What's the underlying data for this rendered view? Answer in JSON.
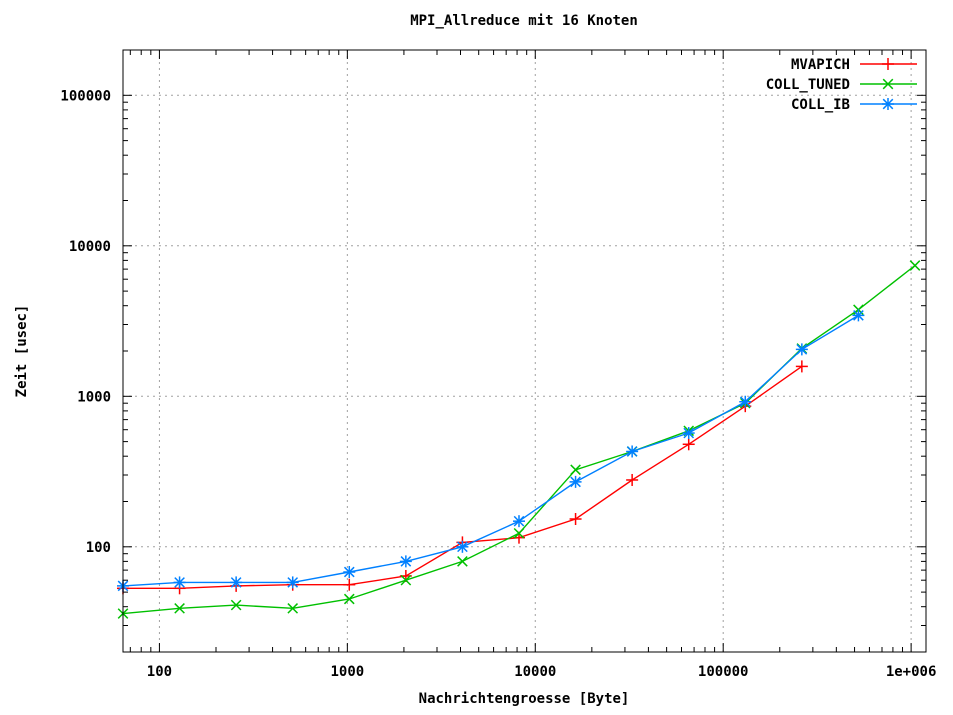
{
  "chart_data": {
    "type": "line",
    "title": "MPI_Allreduce mit 16 Knoten",
    "xlabel": "Nachrichtengroesse [Byte]",
    "ylabel": "Zeit [usec]",
    "xscale": "log",
    "yscale": "log",
    "xlim": [
      64,
      1200000
    ],
    "ylim": [
      20,
      200000
    ],
    "xticks": [
      {
        "value": 100,
        "label": "100"
      },
      {
        "value": 1000,
        "label": "1000"
      },
      {
        "value": 10000,
        "label": "10000"
      },
      {
        "value": 100000,
        "label": "100000"
      },
      {
        "value": 1000000,
        "label": "1e+006"
      }
    ],
    "yticks": [
      {
        "value": 100,
        "label": "100"
      },
      {
        "value": 1000,
        "label": "1000"
      },
      {
        "value": 10000,
        "label": "10000"
      },
      {
        "value": 100000,
        "label": "100000"
      }
    ],
    "grid": true,
    "legend_position": "top-right",
    "series": [
      {
        "name": "MVAPICH",
        "color": "#ff0000",
        "marker": "plus",
        "x": [
          64,
          128,
          256,
          512,
          1024,
          2048,
          4096,
          8192,
          16384,
          32768,
          65536,
          131072,
          262144
        ],
        "y": [
          53,
          53,
          55,
          56,
          56,
          64,
          107,
          115,
          153,
          278,
          480,
          860,
          1580
        ]
      },
      {
        "name": "COLL_TUNED",
        "color": "#00c000",
        "marker": "cross",
        "x": [
          64,
          128,
          256,
          512,
          1024,
          2048,
          4096,
          8192,
          16384,
          32768,
          65536,
          131072,
          262144,
          524288,
          1048576
        ],
        "y": [
          36,
          39,
          41,
          39,
          45,
          60,
          80,
          123,
          325,
          430,
          590,
          900,
          2080,
          3760,
          7400
        ]
      },
      {
        "name": "COLL_IB",
        "color": "#0080ff",
        "marker": "star",
        "x": [
          64,
          128,
          256,
          512,
          1024,
          2048,
          4096,
          8192,
          16384,
          32768,
          65536,
          131072,
          262144,
          524288
        ],
        "y": [
          55,
          58,
          58,
          58,
          68,
          80,
          100,
          148,
          270,
          430,
          570,
          920,
          2050,
          3450
        ]
      }
    ]
  }
}
